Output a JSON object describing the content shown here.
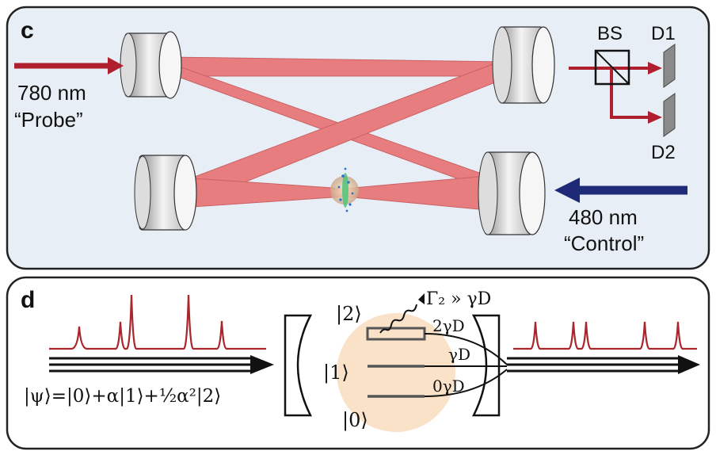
{
  "panel_c": {
    "letter": "c",
    "probe": {
      "line1": "780 nm",
      "line2": "“Probe”"
    },
    "control": {
      "line1": "480 nm",
      "line2": "“Control”"
    },
    "bs": "BS",
    "d1": "D1",
    "d2": "D2"
  },
  "panel_d": {
    "letter": "d",
    "state_formula": "|ψ⟩=|0⟩+α|1⟩+½α²|2⟩",
    "level2": "|2⟩",
    "level1": "|1⟩",
    "level0": "|0⟩",
    "decay_label": "Γ₂ » γD",
    "rate2": "2γD",
    "rate1": "γD",
    "rate0": "0γD"
  },
  "colors": {
    "panel_bg": "#e8eef5",
    "beam": "#e8787a",
    "probe_arrow": "#b01f2e",
    "control_arrow": "#1e2a78",
    "atom_blob": "#f9e2c8",
    "spectrum": "#a8262c"
  }
}
